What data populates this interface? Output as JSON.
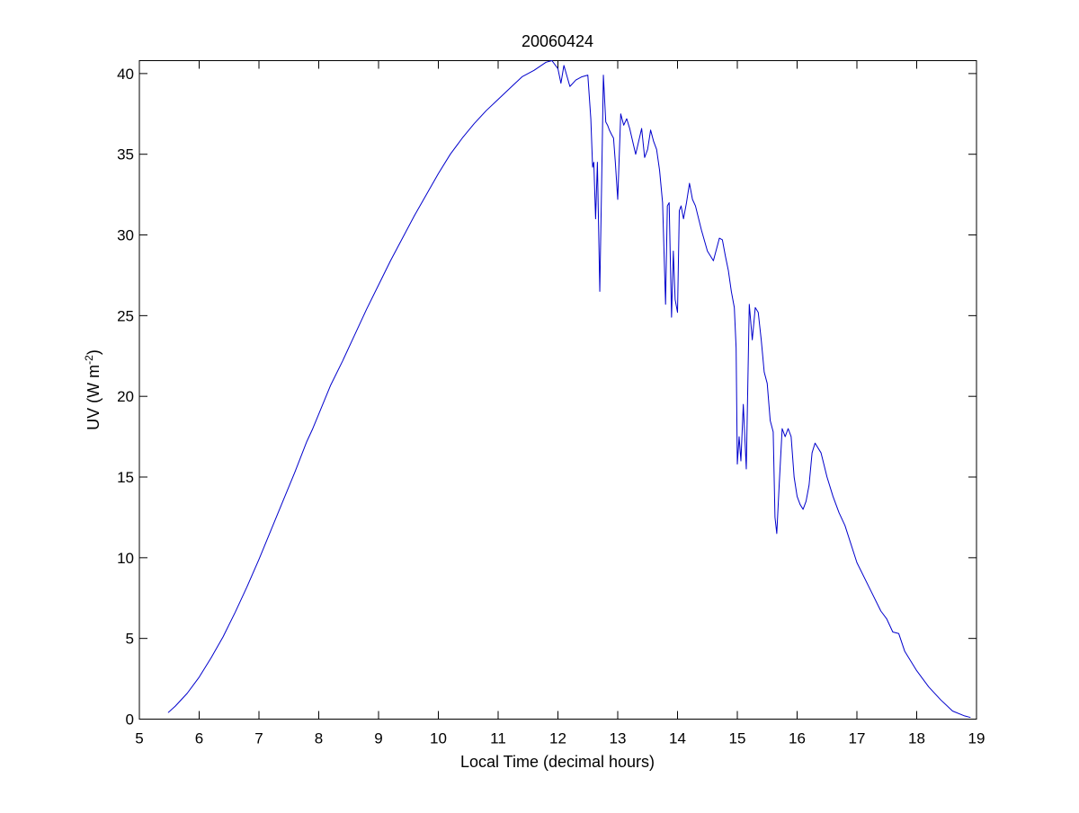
{
  "chart_data": {
    "type": "line",
    "title": "20060424",
    "xlabel": "Local Time (decimal hours)",
    "ylabel": {
      "text": "UV (W m",
      "sup": "-2",
      "suffix": ")"
    },
    "xlim": [
      5,
      19
    ],
    "ylim": [
      0,
      40.8
    ],
    "xticks": [
      5,
      6,
      7,
      8,
      9,
      10,
      11,
      12,
      13,
      14,
      15,
      16,
      17,
      18,
      19
    ],
    "yticks": [
      0,
      5,
      10,
      15,
      20,
      25,
      30,
      35,
      40
    ],
    "grid": false,
    "legend": "none",
    "colors": {
      "line": "#0000cc",
      "axes": "#000000",
      "background": "#ffffff"
    },
    "series": [
      {
        "x": [
          5.48,
          5.6,
          5.8,
          6.0,
          6.2,
          6.4,
          6.6,
          6.8,
          7.0,
          7.2,
          7.4,
          7.6,
          7.8,
          7.9,
          8.0,
          8.2,
          8.4,
          8.6,
          8.8,
          9.0,
          9.2,
          9.4,
          9.6,
          9.8,
          10.0,
          10.2,
          10.4,
          10.6,
          10.8,
          11.0,
          11.2,
          11.4,
          11.6,
          11.8,
          11.9,
          12.0,
          12.05,
          12.1,
          12.2,
          12.3,
          12.4,
          12.5,
          12.55,
          12.58,
          12.6,
          12.63,
          12.66,
          12.7,
          12.73,
          12.76,
          12.8,
          12.83,
          12.86,
          12.9,
          12.93,
          12.96,
          13.0,
          13.05,
          13.1,
          13.15,
          13.2,
          13.3,
          13.4,
          13.45,
          13.5,
          13.55,
          13.6,
          13.65,
          13.7,
          13.75,
          13.8,
          13.83,
          13.86,
          13.9,
          13.93,
          13.96,
          14.0,
          14.03,
          14.06,
          14.1,
          14.15,
          14.2,
          14.25,
          14.3,
          14.4,
          14.5,
          14.6,
          14.7,
          14.75,
          14.8,
          14.85,
          14.9,
          14.95,
          14.98,
          15.0,
          15.03,
          15.06,
          15.1,
          15.15,
          15.2,
          15.25,
          15.3,
          15.35,
          15.4,
          15.45,
          15.5,
          15.55,
          15.6,
          15.63,
          15.66,
          15.7,
          15.75,
          15.8,
          15.85,
          15.9,
          15.95,
          16.0,
          16.05,
          16.1,
          16.15,
          16.2,
          16.25,
          16.3,
          16.4,
          16.5,
          16.6,
          16.7,
          16.8,
          17.0,
          17.2,
          17.4,
          17.5,
          17.6,
          17.7,
          17.8,
          18.0,
          18.2,
          18.4,
          18.6,
          18.8,
          18.9
        ],
        "y": [
          0.4,
          0.8,
          1.6,
          2.6,
          3.8,
          5.1,
          6.6,
          8.2,
          9.9,
          11.7,
          13.5,
          15.3,
          17.2,
          18.0,
          18.9,
          20.7,
          22.2,
          23.8,
          25.4,
          26.9,
          28.4,
          29.8,
          31.2,
          32.5,
          33.8,
          35.0,
          36.0,
          36.9,
          37.7,
          38.4,
          39.1,
          39.8,
          40.2,
          40.7,
          40.8,
          40.3,
          39.4,
          40.5,
          39.2,
          39.6,
          39.8,
          39.9,
          37.2,
          34.2,
          34.5,
          31.0,
          34.5,
          26.5,
          33.0,
          39.9,
          37.0,
          36.8,
          36.5,
          36.2,
          36.0,
          34.5,
          32.2,
          37.5,
          36.8,
          37.2,
          36.6,
          35.0,
          36.6,
          34.8,
          35.3,
          36.5,
          35.8,
          35.3,
          34.0,
          32.0,
          25.7,
          31.8,
          32.0,
          24.9,
          29.0,
          26.0,
          25.2,
          31.5,
          31.8,
          31.0,
          32.0,
          33.2,
          32.2,
          31.8,
          30.3,
          29.0,
          28.4,
          29.8,
          29.7,
          28.7,
          27.8,
          26.5,
          25.5,
          23.0,
          15.8,
          17.5,
          16.0,
          19.5,
          15.5,
          25.7,
          23.5,
          25.5,
          25.2,
          23.5,
          21.5,
          20.8,
          18.5,
          17.8,
          12.5,
          11.5,
          14.5,
          18.0,
          17.5,
          18.0,
          17.5,
          15.0,
          13.8,
          13.3,
          13.0,
          13.5,
          14.5,
          16.5,
          17.1,
          16.5,
          15.0,
          13.8,
          12.8,
          12.0,
          9.7,
          8.2,
          6.7,
          6.2,
          5.4,
          5.3,
          4.2,
          3.0,
          2.0,
          1.2,
          0.5,
          0.2,
          0.1
        ]
      }
    ]
  }
}
